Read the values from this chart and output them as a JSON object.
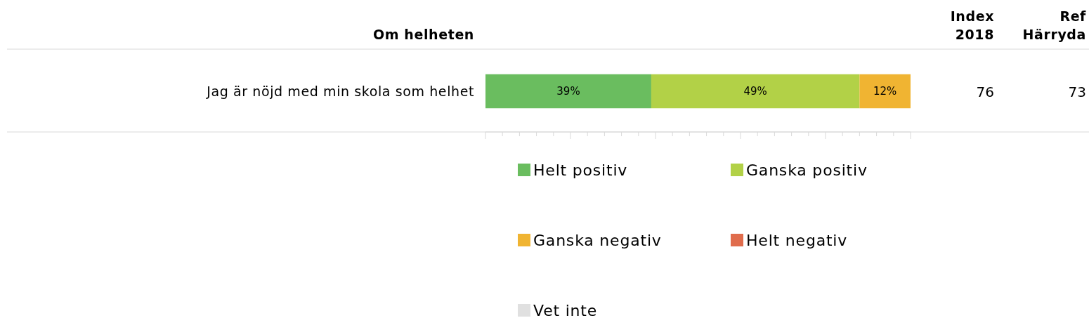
{
  "chart_data": {
    "type": "bar",
    "orientation": "horizontal",
    "stacked": true,
    "title": "Om helheten",
    "categories": [
      "Jag är nöjd med min skola som helhet"
    ],
    "series": [
      {
        "name": "Helt positiv",
        "color": "#6abd5f",
        "values": [
          39
        ],
        "value_labels": [
          "39%"
        ]
      },
      {
        "name": "Ganska positiv",
        "color": "#b2d147",
        "values": [
          49
        ],
        "value_labels": [
          "49%"
        ]
      },
      {
        "name": "Ganska negativ",
        "color": "#f0b432",
        "values": [
          12
        ],
        "value_labels": [
          "12%"
        ]
      },
      {
        "name": "Helt negativ",
        "color": "#e06c4c",
        "values": [
          0
        ],
        "value_labels": [
          null
        ]
      },
      {
        "name": "Vet inte",
        "color": "#e0e0e0",
        "values": [
          0
        ],
        "value_labels": [
          null
        ]
      }
    ],
    "xlim": [
      0,
      100
    ],
    "xticks": [
      {
        "value": 0,
        "label": null
      },
      {
        "value": 4,
        "label": null
      },
      {
        "value": 8,
        "label": null
      },
      {
        "value": 12,
        "label": null
      },
      {
        "value": 16,
        "label": null
      },
      {
        "value": 20,
        "label": null
      },
      {
        "value": 24,
        "label": null
      },
      {
        "value": 28,
        "label": null
      },
      {
        "value": 32,
        "label": null
      },
      {
        "value": 36,
        "label": null
      },
      {
        "value": 40,
        "label": null
      },
      {
        "value": 44,
        "label": null
      },
      {
        "value": 48,
        "label": null
      },
      {
        "value": 52,
        "label": null
      },
      {
        "value": 56,
        "label": null
      },
      {
        "value": 60,
        "label": null
      },
      {
        "value": 64,
        "label": null
      },
      {
        "value": 68,
        "label": null
      },
      {
        "value": 72,
        "label": null
      },
      {
        "value": 76,
        "label": null
      },
      {
        "value": 80,
        "label": null
      },
      {
        "value": 84,
        "label": null
      },
      {
        "value": 88,
        "label": null
      },
      {
        "value": 92,
        "label": null
      },
      {
        "value": 96,
        "label": null
      },
      {
        "value": 100,
        "label": null
      }
    ],
    "legend": "bottom",
    "annotations": [
      "Index 2018",
      "Ref Härryda",
      "76",
      "73"
    ]
  }
}
